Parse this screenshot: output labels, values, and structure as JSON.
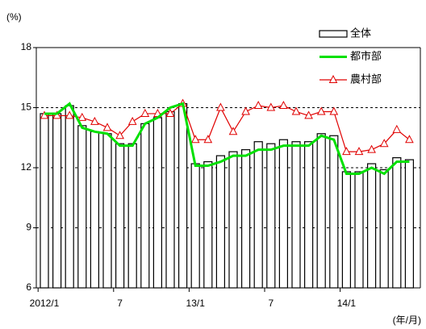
{
  "chart_data": {
    "type": "bar_line",
    "y_label": "(%)",
    "x_label": "(年/月)",
    "categories": [
      "2012/1",
      null,
      null,
      null,
      null,
      null,
      "7",
      null,
      null,
      null,
      null,
      null,
      "13/1",
      null,
      null,
      null,
      null,
      null,
      "7",
      null,
      null,
      null,
      null,
      null,
      "14/1",
      null,
      null,
      null,
      null,
      null
    ],
    "series": [
      {
        "name": "全体",
        "kind": "bar",
        "color": "#000000",
        "values": [
          14.7,
          14.7,
          15.1,
          14.1,
          13.8,
          13.7,
          13.2,
          13.2,
          14.2,
          14.5,
          14.8,
          15.2,
          12.2,
          12.3,
          12.6,
          12.8,
          12.9,
          13.3,
          13.2,
          13.4,
          13.3,
          13.3,
          13.7,
          13.6,
          11.8,
          11.8,
          12.2,
          11.9,
          12.5,
          12.4
        ]
      },
      {
        "name": "都市部",
        "kind": "line",
        "color": "#00e000",
        "values": [
          14.7,
          14.7,
          15.2,
          14.0,
          13.8,
          13.7,
          13.1,
          13.1,
          14.2,
          14.5,
          15.0,
          15.2,
          12.1,
          12.1,
          12.3,
          12.6,
          12.6,
          12.9,
          12.9,
          13.1,
          13.1,
          13.1,
          13.6,
          13.4,
          11.7,
          11.7,
          12.0,
          11.7,
          12.3,
          12.3
        ]
      },
      {
        "name": "農村部",
        "kind": "line_marker",
        "color": "#e00000",
        "values": [
          14.6,
          14.6,
          14.6,
          14.5,
          14.3,
          14.0,
          13.6,
          14.3,
          14.7,
          14.7,
          14.7,
          15.2,
          13.4,
          13.4,
          15.0,
          13.8,
          14.8,
          15.1,
          15.0,
          15.1,
          14.8,
          14.6,
          14.8,
          14.8,
          12.8,
          12.8,
          12.9,
          13.2,
          13.9,
          13.4
        ]
      }
    ],
    "ylim": [
      6,
      18
    ],
    "yticks": [
      6,
      9,
      12,
      15,
      18
    ],
    "grid": true,
    "legend": "upper right"
  }
}
